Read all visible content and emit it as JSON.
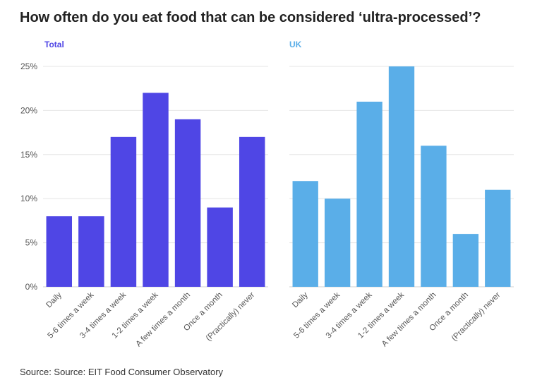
{
  "title": "How often do you eat food that can be considered ‘ultra-processed’?",
  "source": "Source: Source: EIT Food Consumer Observatory",
  "chart_data": {
    "type": "bar",
    "categories": [
      "Daily",
      "5-6 times a week",
      "3-4 times a week",
      "1-2 times a week",
      "A few times a month",
      "Once a month",
      "(Practically) never"
    ],
    "ylim": [
      0,
      25
    ],
    "yticks": [
      0,
      5,
      10,
      15,
      20,
      25
    ],
    "ytick_suffix": "%",
    "grid": true,
    "panels": [
      {
        "name": "Total",
        "color": "#4f46e5",
        "values": [
          8,
          8,
          17,
          22,
          19,
          9,
          17
        ]
      },
      {
        "name": "UK",
        "color": "#5aaee8",
        "values": [
          12,
          10,
          21,
          25,
          16,
          6,
          11
        ]
      }
    ]
  }
}
